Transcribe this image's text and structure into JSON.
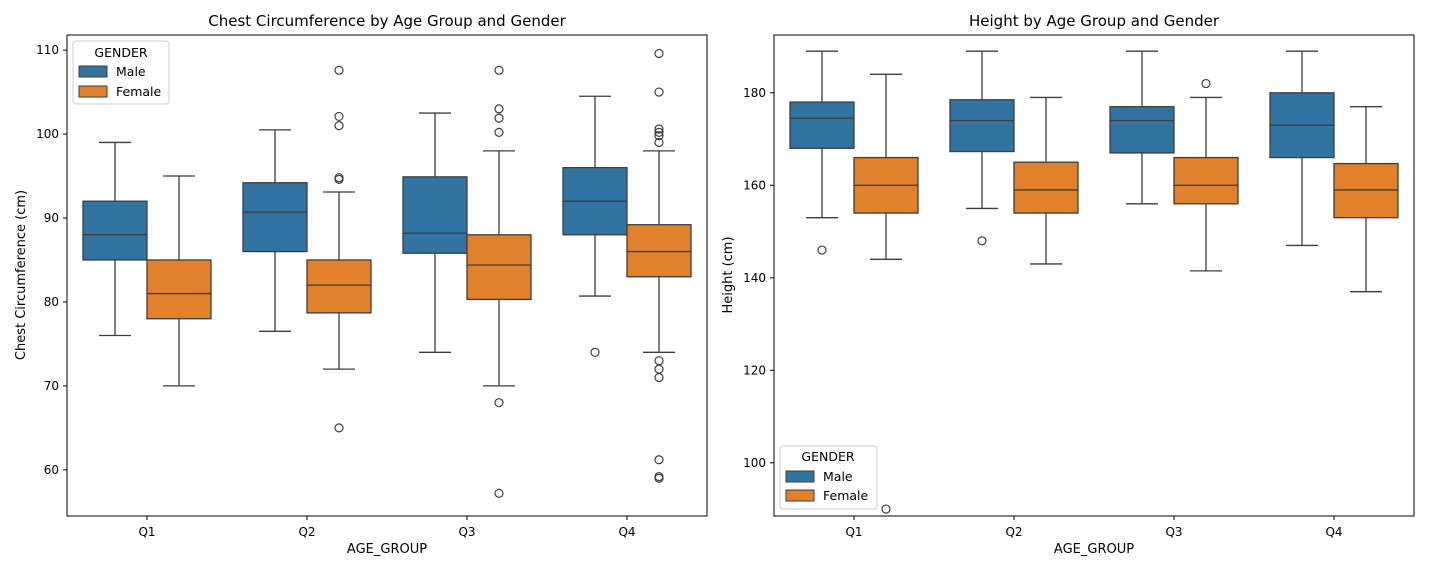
{
  "colors": {
    "male": "#3274a1",
    "female": "#e1812c",
    "line": "#3d3d3d"
  },
  "chart_data": [
    {
      "type": "box",
      "title": "Chest Circumference by Age Group and Gender",
      "xlabel": "AGE_GROUP",
      "ylabel": "Chest Circumference (cm)",
      "ylim": [
        54.5,
        111.8
      ],
      "yticks": [
        60,
        70,
        80,
        90,
        100,
        110
      ],
      "categories": [
        "Q1",
        "Q2",
        "Q3",
        "Q4"
      ],
      "legend": {
        "title": "GENDER",
        "position": "upper left"
      },
      "series": [
        {
          "name": "Male",
          "color": "#3274a1",
          "boxes": [
            {
              "category": "Q1",
              "whislo": 76,
              "q1": 85,
              "med": 88,
              "q3": 92,
              "whishi": 99,
              "fliers": []
            },
            {
              "category": "Q2",
              "whislo": 76.5,
              "q1": 86,
              "med": 90.7,
              "q3": 94.2,
              "whishi": 100.5,
              "fliers": []
            },
            {
              "category": "Q3",
              "whislo": 74,
              "q1": 85.8,
              "med": 88.2,
              "q3": 94.9,
              "whishi": 102.5,
              "fliers": []
            },
            {
              "category": "Q4",
              "whislo": 80.7,
              "q1": 88,
              "med": 92,
              "q3": 96,
              "whishi": 104.5,
              "fliers": [
                74
              ]
            }
          ]
        },
        {
          "name": "Female",
          "color": "#e1812c",
          "boxes": [
            {
              "category": "Q1",
              "whislo": 70,
              "q1": 78,
              "med": 81,
              "q3": 85,
              "whishi": 95,
              "fliers": []
            },
            {
              "category": "Q2",
              "whislo": 72,
              "q1": 78.7,
              "med": 82,
              "q3": 85,
              "whishi": 93.1,
              "fliers": [
                65,
                94.6,
                94.8,
                101,
                102.1,
                107.6
              ]
            },
            {
              "category": "Q3",
              "whislo": 70,
              "q1": 80.3,
              "med": 84.4,
              "q3": 88,
              "whishi": 98,
              "fliers": [
                57.2,
                68,
                100.2,
                101.9,
                103,
                107.6
              ]
            },
            {
              "category": "Q4",
              "whislo": 74,
              "q1": 83,
              "med": 86,
              "q3": 89.2,
              "whishi": 98,
              "fliers": [
                59,
                59.2,
                61.2,
                71,
                72,
                73,
                99,
                99.8,
                100.2,
                100.6,
                105,
                109.6
              ]
            }
          ]
        }
      ]
    },
    {
      "type": "box",
      "title": "Height by Age Group and Gender",
      "xlabel": "AGE_GROUP",
      "ylabel": "Height (cm)",
      "ylim": [
        88.5,
        192.5
      ],
      "yticks": [
        100,
        120,
        140,
        160,
        180
      ],
      "categories": [
        "Q1",
        "Q2",
        "Q3",
        "Q4"
      ],
      "legend": {
        "title": "GENDER",
        "position": "lower left"
      },
      "series": [
        {
          "name": "Male",
          "color": "#3274a1",
          "boxes": [
            {
              "category": "Q1",
              "whislo": 153,
              "q1": 168,
              "med": 174.5,
              "q3": 178,
              "whishi": 189,
              "fliers": [
                146
              ]
            },
            {
              "category": "Q2",
              "whislo": 155,
              "q1": 167.3,
              "med": 174,
              "q3": 178.5,
              "whishi": 189,
              "fliers": [
                148
              ]
            },
            {
              "category": "Q3",
              "whislo": 156,
              "q1": 167,
              "med": 174,
              "q3": 177,
              "whishi": 189,
              "fliers": []
            },
            {
              "category": "Q4",
              "whislo": 147,
              "q1": 166,
              "med": 173,
              "q3": 180,
              "whishi": 189,
              "fliers": []
            }
          ]
        },
        {
          "name": "Female",
          "color": "#e1812c",
          "boxes": [
            {
              "category": "Q1",
              "whislo": 144,
              "q1": 154,
              "med": 160,
              "q3": 166,
              "whishi": 184,
              "fliers": [
                90
              ]
            },
            {
              "category": "Q2",
              "whislo": 143,
              "q1": 154,
              "med": 159,
              "q3": 165,
              "whishi": 179,
              "fliers": []
            },
            {
              "category": "Q3",
              "whislo": 141.5,
              "q1": 156,
              "med": 160,
              "q3": 166,
              "whishi": 179,
              "fliers": [
                182
              ]
            },
            {
              "category": "Q4",
              "whislo": 137,
              "q1": 153,
              "med": 159,
              "q3": 164.7,
              "whishi": 177,
              "fliers": []
            }
          ]
        }
      ]
    }
  ]
}
